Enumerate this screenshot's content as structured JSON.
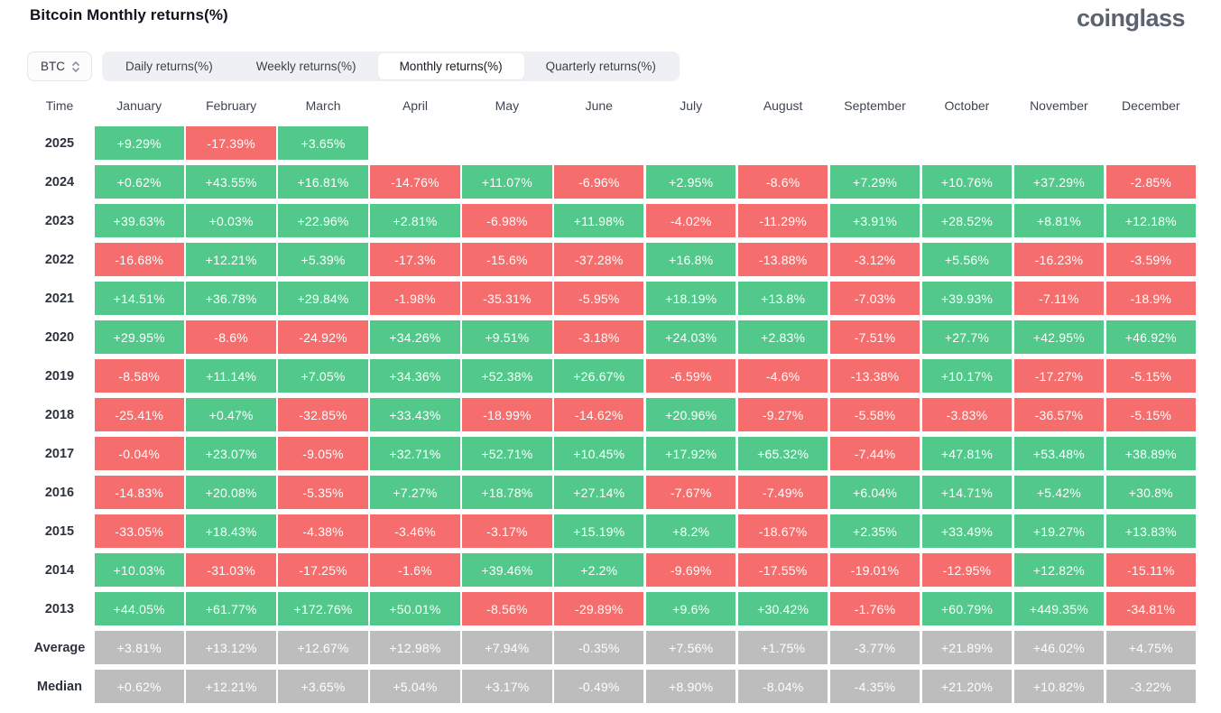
{
  "header": {
    "title": "Bitcoin Monthly returns(%)",
    "logo_text": "coinglass"
  },
  "controls": {
    "coin_selector": {
      "value": "BTC",
      "icon": "sort-updown-icon"
    },
    "tabs": [
      {
        "label": "Daily returns(%)",
        "active": false
      },
      {
        "label": "Weekly returns(%)",
        "active": false
      },
      {
        "label": "Monthly returns(%)",
        "active": true
      },
      {
        "label": "Quarterly returns(%)",
        "active": false
      }
    ]
  },
  "colors": {
    "positive": "#52c98b",
    "negative": "#f66d6d",
    "neutral": "#bdbdbd"
  },
  "table": {
    "columns": [
      "Time",
      "January",
      "February",
      "March",
      "April",
      "May",
      "June",
      "July",
      "August",
      "September",
      "October",
      "November",
      "December"
    ],
    "rows": [
      {
        "label": "2025",
        "type": "year",
        "cells": [
          "+9.29%",
          "-17.39%",
          "+3.65%",
          "",
          "",
          "",
          "",
          "",
          "",
          "",
          "",
          ""
        ]
      },
      {
        "label": "2024",
        "type": "year",
        "cells": [
          "+0.62%",
          "+43.55%",
          "+16.81%",
          "-14.76%",
          "+11.07%",
          "-6.96%",
          "+2.95%",
          "-8.6%",
          "+7.29%",
          "+10.76%",
          "+37.29%",
          "-2.85%"
        ]
      },
      {
        "label": "2023",
        "type": "year",
        "cells": [
          "+39.63%",
          "+0.03%",
          "+22.96%",
          "+2.81%",
          "-6.98%",
          "+11.98%",
          "-4.02%",
          "-11.29%",
          "+3.91%",
          "+28.52%",
          "+8.81%",
          "+12.18%"
        ]
      },
      {
        "label": "2022",
        "type": "year",
        "cells": [
          "-16.68%",
          "+12.21%",
          "+5.39%",
          "-17.3%",
          "-15.6%",
          "-37.28%",
          "+16.8%",
          "-13.88%",
          "-3.12%",
          "+5.56%",
          "-16.23%",
          "-3.59%"
        ]
      },
      {
        "label": "2021",
        "type": "year",
        "cells": [
          "+14.51%",
          "+36.78%",
          "+29.84%",
          "-1.98%",
          "-35.31%",
          "-5.95%",
          "+18.19%",
          "+13.8%",
          "-7.03%",
          "+39.93%",
          "-7.11%",
          "-18.9%"
        ]
      },
      {
        "label": "2020",
        "type": "year",
        "cells": [
          "+29.95%",
          "-8.6%",
          "-24.92%",
          "+34.26%",
          "+9.51%",
          "-3.18%",
          "+24.03%",
          "+2.83%",
          "-7.51%",
          "+27.7%",
          "+42.95%",
          "+46.92%"
        ]
      },
      {
        "label": "2019",
        "type": "year",
        "cells": [
          "-8.58%",
          "+11.14%",
          "+7.05%",
          "+34.36%",
          "+52.38%",
          "+26.67%",
          "-6.59%",
          "-4.6%",
          "-13.38%",
          "+10.17%",
          "-17.27%",
          "-5.15%"
        ]
      },
      {
        "label": "2018",
        "type": "year",
        "cells": [
          "-25.41%",
          "+0.47%",
          "-32.85%",
          "+33.43%",
          "-18.99%",
          "-14.62%",
          "+20.96%",
          "-9.27%",
          "-5.58%",
          "-3.83%",
          "-36.57%",
          "-5.15%"
        ]
      },
      {
        "label": "2017",
        "type": "year",
        "cells": [
          "-0.04%",
          "+23.07%",
          "-9.05%",
          "+32.71%",
          "+52.71%",
          "+10.45%",
          "+17.92%",
          "+65.32%",
          "-7.44%",
          "+47.81%",
          "+53.48%",
          "+38.89%"
        ]
      },
      {
        "label": "2016",
        "type": "year",
        "cells": [
          "-14.83%",
          "+20.08%",
          "-5.35%",
          "+7.27%",
          "+18.78%",
          "+27.14%",
          "-7.67%",
          "-7.49%",
          "+6.04%",
          "+14.71%",
          "+5.42%",
          "+30.8%"
        ]
      },
      {
        "label": "2015",
        "type": "year",
        "cells": [
          "-33.05%",
          "+18.43%",
          "-4.38%",
          "-3.46%",
          "-3.17%",
          "+15.19%",
          "+8.2%",
          "-18.67%",
          "+2.35%",
          "+33.49%",
          "+19.27%",
          "+13.83%"
        ]
      },
      {
        "label": "2014",
        "type": "year",
        "cells": [
          "+10.03%",
          "-31.03%",
          "-17.25%",
          "-1.6%",
          "+39.46%",
          "+2.2%",
          "-9.69%",
          "-17.55%",
          "-19.01%",
          "-12.95%",
          "+12.82%",
          "-15.11%"
        ]
      },
      {
        "label": "2013",
        "type": "year",
        "cells": [
          "+44.05%",
          "+61.77%",
          "+172.76%",
          "+50.01%",
          "-8.56%",
          "-29.89%",
          "+9.6%",
          "+30.42%",
          "-1.76%",
          "+60.79%",
          "+449.35%",
          "-34.81%"
        ]
      },
      {
        "label": "Average",
        "type": "summary",
        "cells": [
          "+3.81%",
          "+13.12%",
          "+12.67%",
          "+12.98%",
          "+7.94%",
          "-0.35%",
          "+7.56%",
          "+1.75%",
          "-3.77%",
          "+21.89%",
          "+46.02%",
          "+4.75%"
        ]
      },
      {
        "label": "Median",
        "type": "summary",
        "cells": [
          "+0.62%",
          "+12.21%",
          "+3.65%",
          "+5.04%",
          "+3.17%",
          "-0.49%",
          "+8.90%",
          "-8.04%",
          "-4.35%",
          "+21.20%",
          "+10.82%",
          "-3.22%"
        ]
      }
    ]
  }
}
